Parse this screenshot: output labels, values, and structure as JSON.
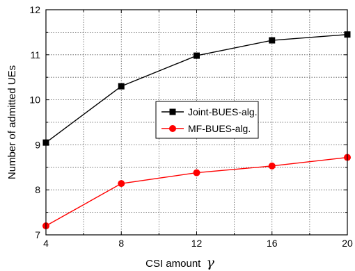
{
  "chart_data": {
    "type": "line",
    "title": "",
    "xlabel": "CSI amount",
    "xlabel_symbol": "γ",
    "ylabel": "Number of admitted UEs",
    "x": [
      4,
      8,
      12,
      16,
      20
    ],
    "xlim": [
      4,
      20
    ],
    "ylim": [
      7,
      12
    ],
    "xticks": [
      "4",
      "8",
      "12",
      "16",
      "20"
    ],
    "yticks": [
      "7",
      "8",
      "9",
      "10",
      "11",
      "12"
    ],
    "grid": true,
    "grid_style": "dotted",
    "legend_position": "center-right",
    "series": [
      {
        "name": "Joint-BUES-alg.",
        "values": [
          9.05,
          10.3,
          10.98,
          11.32,
          11.45
        ],
        "color": "#000000",
        "marker": "square"
      },
      {
        "name": "MF-BUES-alg.",
        "values": [
          7.2,
          8.14,
          8.38,
          8.53,
          8.72
        ],
        "color": "#ff0000",
        "marker": "circle"
      }
    ]
  }
}
